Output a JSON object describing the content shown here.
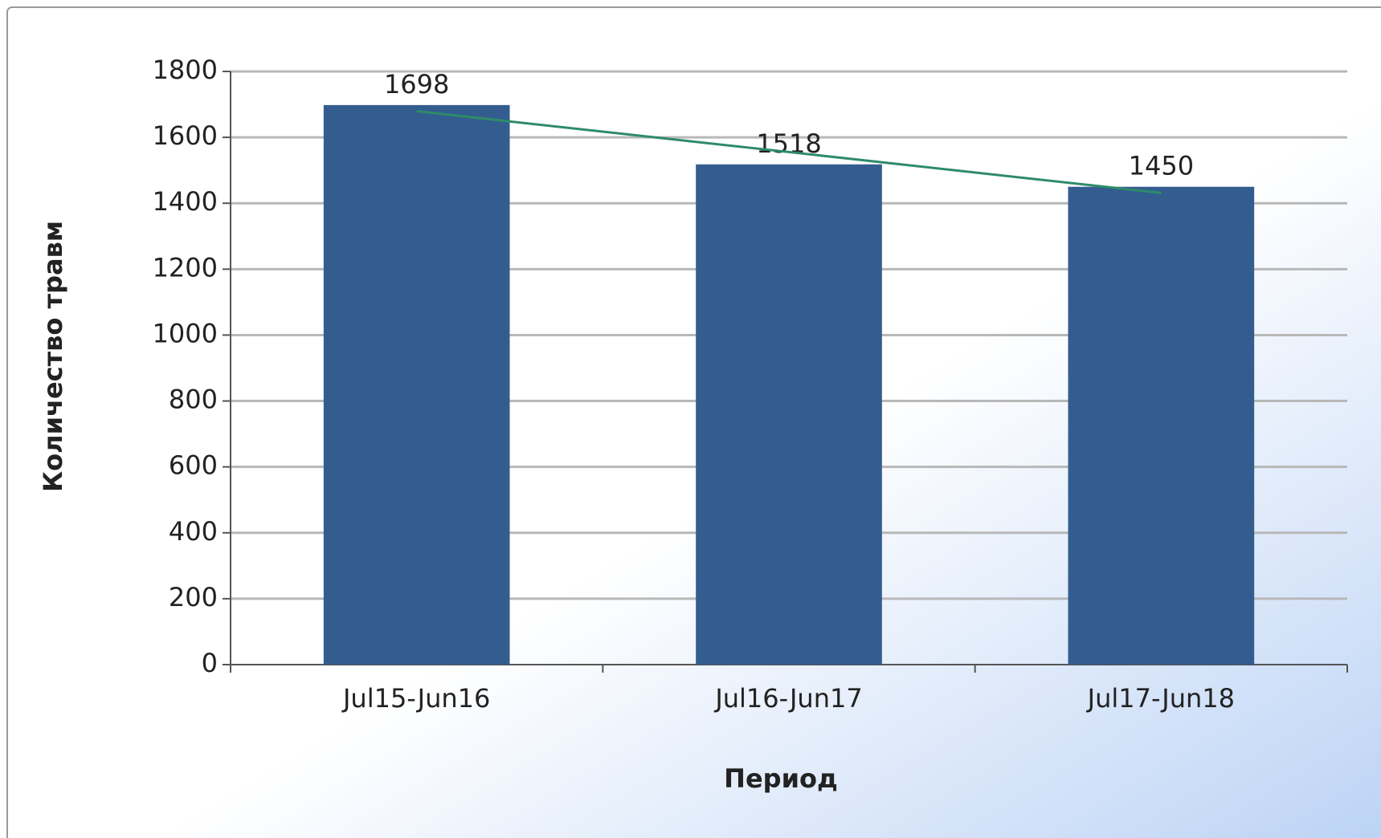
{
  "chart_data": {
    "type": "bar",
    "categories": [
      "Jul15-Jun16",
      "Jul16-Jun17",
      "Jul17-Jun18"
    ],
    "values": [
      1698,
      1518,
      1450
    ],
    "color": "#345d8f",
    "trendline": {
      "kind": "linear",
      "color": "#2e8b6a"
    },
    "xlabel": "Период",
    "ylabel": "Количество травм",
    "ylim": [
      0,
      1800
    ],
    "yticks": [
      0,
      200,
      400,
      600,
      800,
      1000,
      1200,
      1400,
      1600,
      1800
    ],
    "grid": true
  }
}
